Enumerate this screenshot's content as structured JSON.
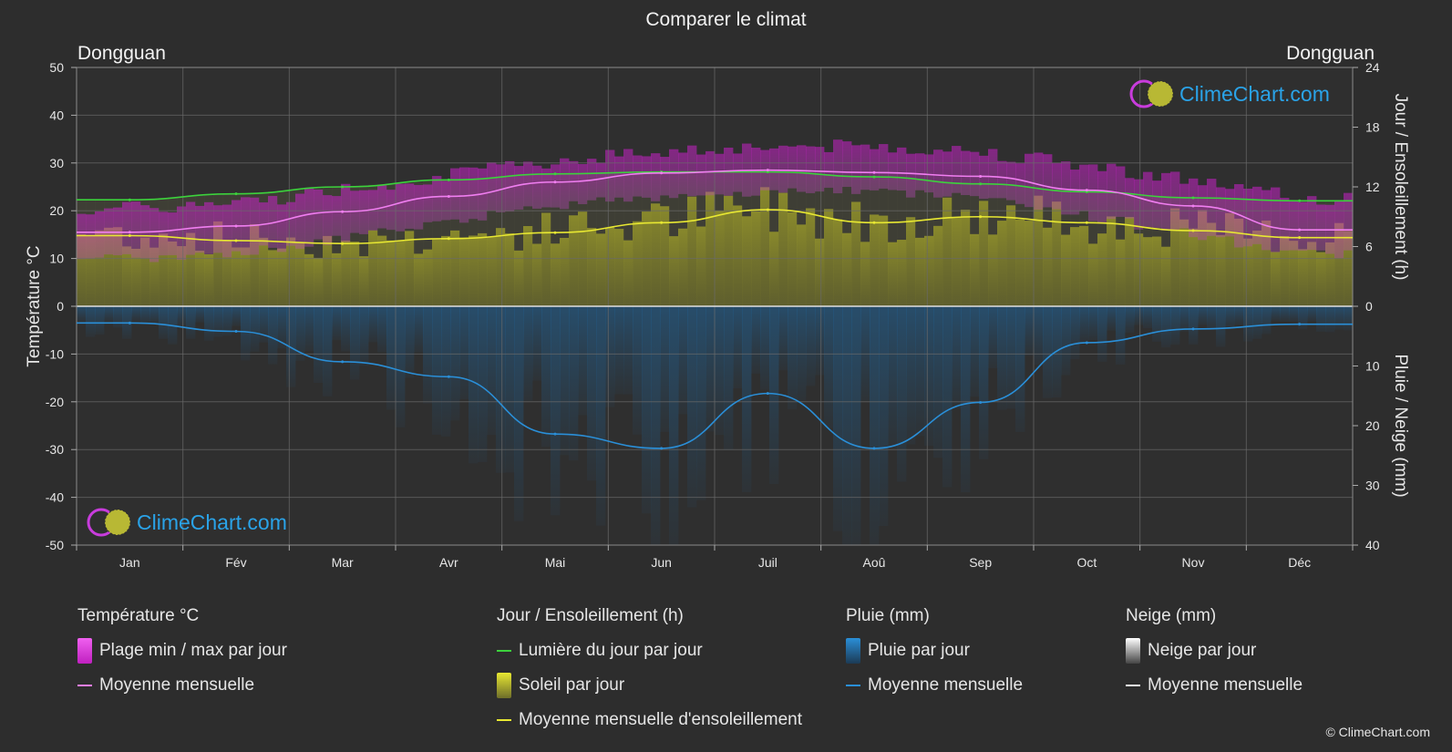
{
  "title": "Comparer le climat",
  "city_left": "Dongguan",
  "city_right": "Dongguan",
  "logo_text": "ClimeChart.com",
  "copyright": "© ClimeChart.com",
  "legend": {
    "temperature": {
      "head": "Température °C",
      "range": "Plage min / max par jour",
      "mean": "Moyenne mensuelle"
    },
    "sun": {
      "head": "Jour / Ensoleillement (h)",
      "daylight": "Lumière du jour par jour",
      "sunshine": "Soleil par jour",
      "sun_mean": "Moyenne mensuelle d'ensoleillement"
    },
    "rain": {
      "head": "Pluie (mm)",
      "daily": "Pluie par jour",
      "mean": "Moyenne mensuelle"
    },
    "snow": {
      "head": "Neige (mm)",
      "daily": "Neige par jour",
      "mean": "Moyenne mensuelle"
    }
  },
  "chart_data": {
    "type": "line",
    "categories": [
      "Jan",
      "Fév",
      "Mar",
      "Avr",
      "Mai",
      "Jun",
      "Juil",
      "Aoû",
      "Sep",
      "Oct",
      "Nov",
      "Déc"
    ],
    "y_left": {
      "label": "Température °C",
      "range": [
        -50,
        50
      ],
      "ticks": [
        50,
        40,
        30,
        20,
        10,
        0,
        -10,
        -20,
        -30,
        -40,
        -50
      ]
    },
    "y_right_top": {
      "label": "Jour / Ensoleillement (h)",
      "range": [
        0,
        24
      ],
      "ticks": [
        24,
        18,
        12,
        6,
        0
      ]
    },
    "y_right_bottom": {
      "label": "Pluie / Neige (mm)",
      "range": [
        0,
        40
      ],
      "ticks": [
        10,
        20,
        30,
        40
      ]
    },
    "series": [
      {
        "name": "Lumière du jour par jour",
        "axis": "hours",
        "color": "#3cd23c",
        "values": [
          10.7,
          11.3,
          12.0,
          12.7,
          13.3,
          13.5,
          13.5,
          13.0,
          12.3,
          11.5,
          10.9,
          10.6
        ]
      },
      {
        "name": "Moyenne mensuelle d'ensoleillement",
        "axis": "hours",
        "color": "#e8e832",
        "values": [
          7.1,
          6.6,
          6.3,
          6.8,
          7.4,
          8.4,
          9.7,
          8.4,
          9.0,
          8.4,
          7.6,
          6.9
        ]
      },
      {
        "name": "Moyenne mensuelle",
        "axis": "temperature",
        "color": "#f07ef0",
        "values": [
          15.5,
          16.8,
          19.8,
          23.0,
          26.0,
          27.9,
          28.5,
          28.0,
          27.2,
          24.3,
          21.0,
          16.0
        ]
      },
      {
        "name": "Moyenne mensuelle",
        "axis": "rain_mm",
        "color": "#2a8fd8",
        "values": [
          2.8,
          4.2,
          9.3,
          11.8,
          21.4,
          23.8,
          14.6,
          23.8,
          16.1,
          6.1,
          3.8,
          3.0
        ]
      }
    ],
    "temperature_range": {
      "min": [
        11,
        12,
        15,
        19,
        22,
        24,
        25,
        25,
        24,
        20,
        16,
        12
      ],
      "max": [
        19,
        20,
        23,
        26,
        29,
        31,
        32,
        32,
        31,
        28,
        25,
        21
      ]
    },
    "grid": true,
    "colors": {
      "background": "#2d2d2d",
      "rain": "#2a8fd8",
      "sun": "#e8e832",
      "daylight": "#3cd23c",
      "temp": "#f07ef0",
      "temp_range": "#d21ed2"
    }
  }
}
